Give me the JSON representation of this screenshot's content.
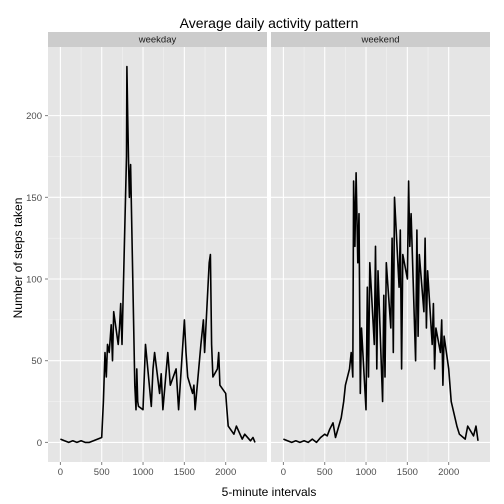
{
  "chart_data": {
    "type": "line",
    "title": "Average daily activity pattern",
    "xlabel": "5-minute intervals",
    "ylabel": "Number of steps taken",
    "xlim": [
      -150,
      2500
    ],
    "ylim": [
      -12,
      242
    ],
    "x_ticks": [
      0,
      500,
      1000,
      1500,
      2000
    ],
    "y_ticks": [
      0,
      50,
      100,
      150,
      200
    ],
    "grid": true,
    "colors": {
      "panel_bg": "#e5e5e5",
      "strip_bg": "#cccccc",
      "grid_major": "#ffffff",
      "line": "#000000"
    },
    "series": [
      {
        "name": "weekday",
        "x": [
          0,
          50,
          100,
          150,
          200,
          250,
          300,
          350,
          400,
          450,
          500,
          520,
          540,
          555,
          570,
          590,
          605,
          615,
          630,
          645,
          700,
          715,
          730,
          745,
          800,
          805,
          815,
          825,
          835,
          850,
          900,
          915,
          925,
          935,
          945,
          1000,
          1030,
          1100,
          1120,
          1140,
          1200,
          1220,
          1240,
          1300,
          1330,
          1400,
          1430,
          1500,
          1520,
          1540,
          1600,
          1615,
          1630,
          1700,
          1730,
          1745,
          1800,
          1815,
          1830,
          1845,
          1900,
          1915,
          1930,
          2000,
          2015,
          2030,
          2100,
          2130,
          2200,
          2230,
          2300,
          2330,
          2355
        ],
        "y": [
          2,
          1,
          0,
          1,
          0,
          1,
          0,
          0,
          1,
          2,
          3,
          25,
          55,
          40,
          60,
          55,
          65,
          72,
          50,
          80,
          60,
          70,
          85,
          60,
          175,
          230,
          200,
          170,
          150,
          170,
          35,
          20,
          45,
          25,
          22,
          20,
          60,
          22,
          45,
          55,
          30,
          42,
          20,
          55,
          35,
          45,
          20,
          75,
          55,
          40,
          30,
          35,
          20,
          60,
          75,
          55,
          110,
          115,
          60,
          40,
          45,
          55,
          35,
          30,
          20,
          10,
          5,
          10,
          2,
          5,
          1,
          3,
          0
        ]
      },
      {
        "name": "weekend",
        "x": [
          0,
          50,
          100,
          150,
          200,
          250,
          300,
          350,
          400,
          450,
          500,
          530,
          560,
          600,
          630,
          700,
          730,
          750,
          800,
          820,
          840,
          850,
          865,
          880,
          900,
          915,
          930,
          945,
          1000,
          1015,
          1030,
          1045,
          1100,
          1115,
          1130,
          1145,
          1200,
          1215,
          1230,
          1245,
          1300,
          1315,
          1330,
          1345,
          1400,
          1415,
          1430,
          1445,
          1500,
          1515,
          1530,
          1545,
          1600,
          1615,
          1630,
          1645,
          1700,
          1715,
          1730,
          1745,
          1800,
          1815,
          1830,
          1845,
          1900,
          1915,
          1930,
          1945,
          2000,
          2030,
          2100,
          2130,
          2200,
          2230,
          2300,
          2330,
          2355
        ],
        "y": [
          2,
          1,
          0,
          1,
          0,
          1,
          0,
          2,
          0,
          3,
          5,
          4,
          8,
          12,
          3,
          15,
          25,
          35,
          45,
          55,
          40,
          160,
          120,
          165,
          110,
          140,
          30,
          70,
          20,
          95,
          40,
          110,
          60,
          120,
          45,
          105,
          25,
          90,
          40,
          110,
          70,
          125,
          55,
          150,
          95,
          130,
          45,
          115,
          100,
          160,
          120,
          140,
          50,
          130,
          65,
          115,
          80,
          125,
          70,
          105,
          60,
          85,
          45,
          70,
          55,
          75,
          35,
          65,
          45,
          25,
          10,
          5,
          2,
          10,
          4,
          10,
          1
        ]
      }
    ]
  }
}
